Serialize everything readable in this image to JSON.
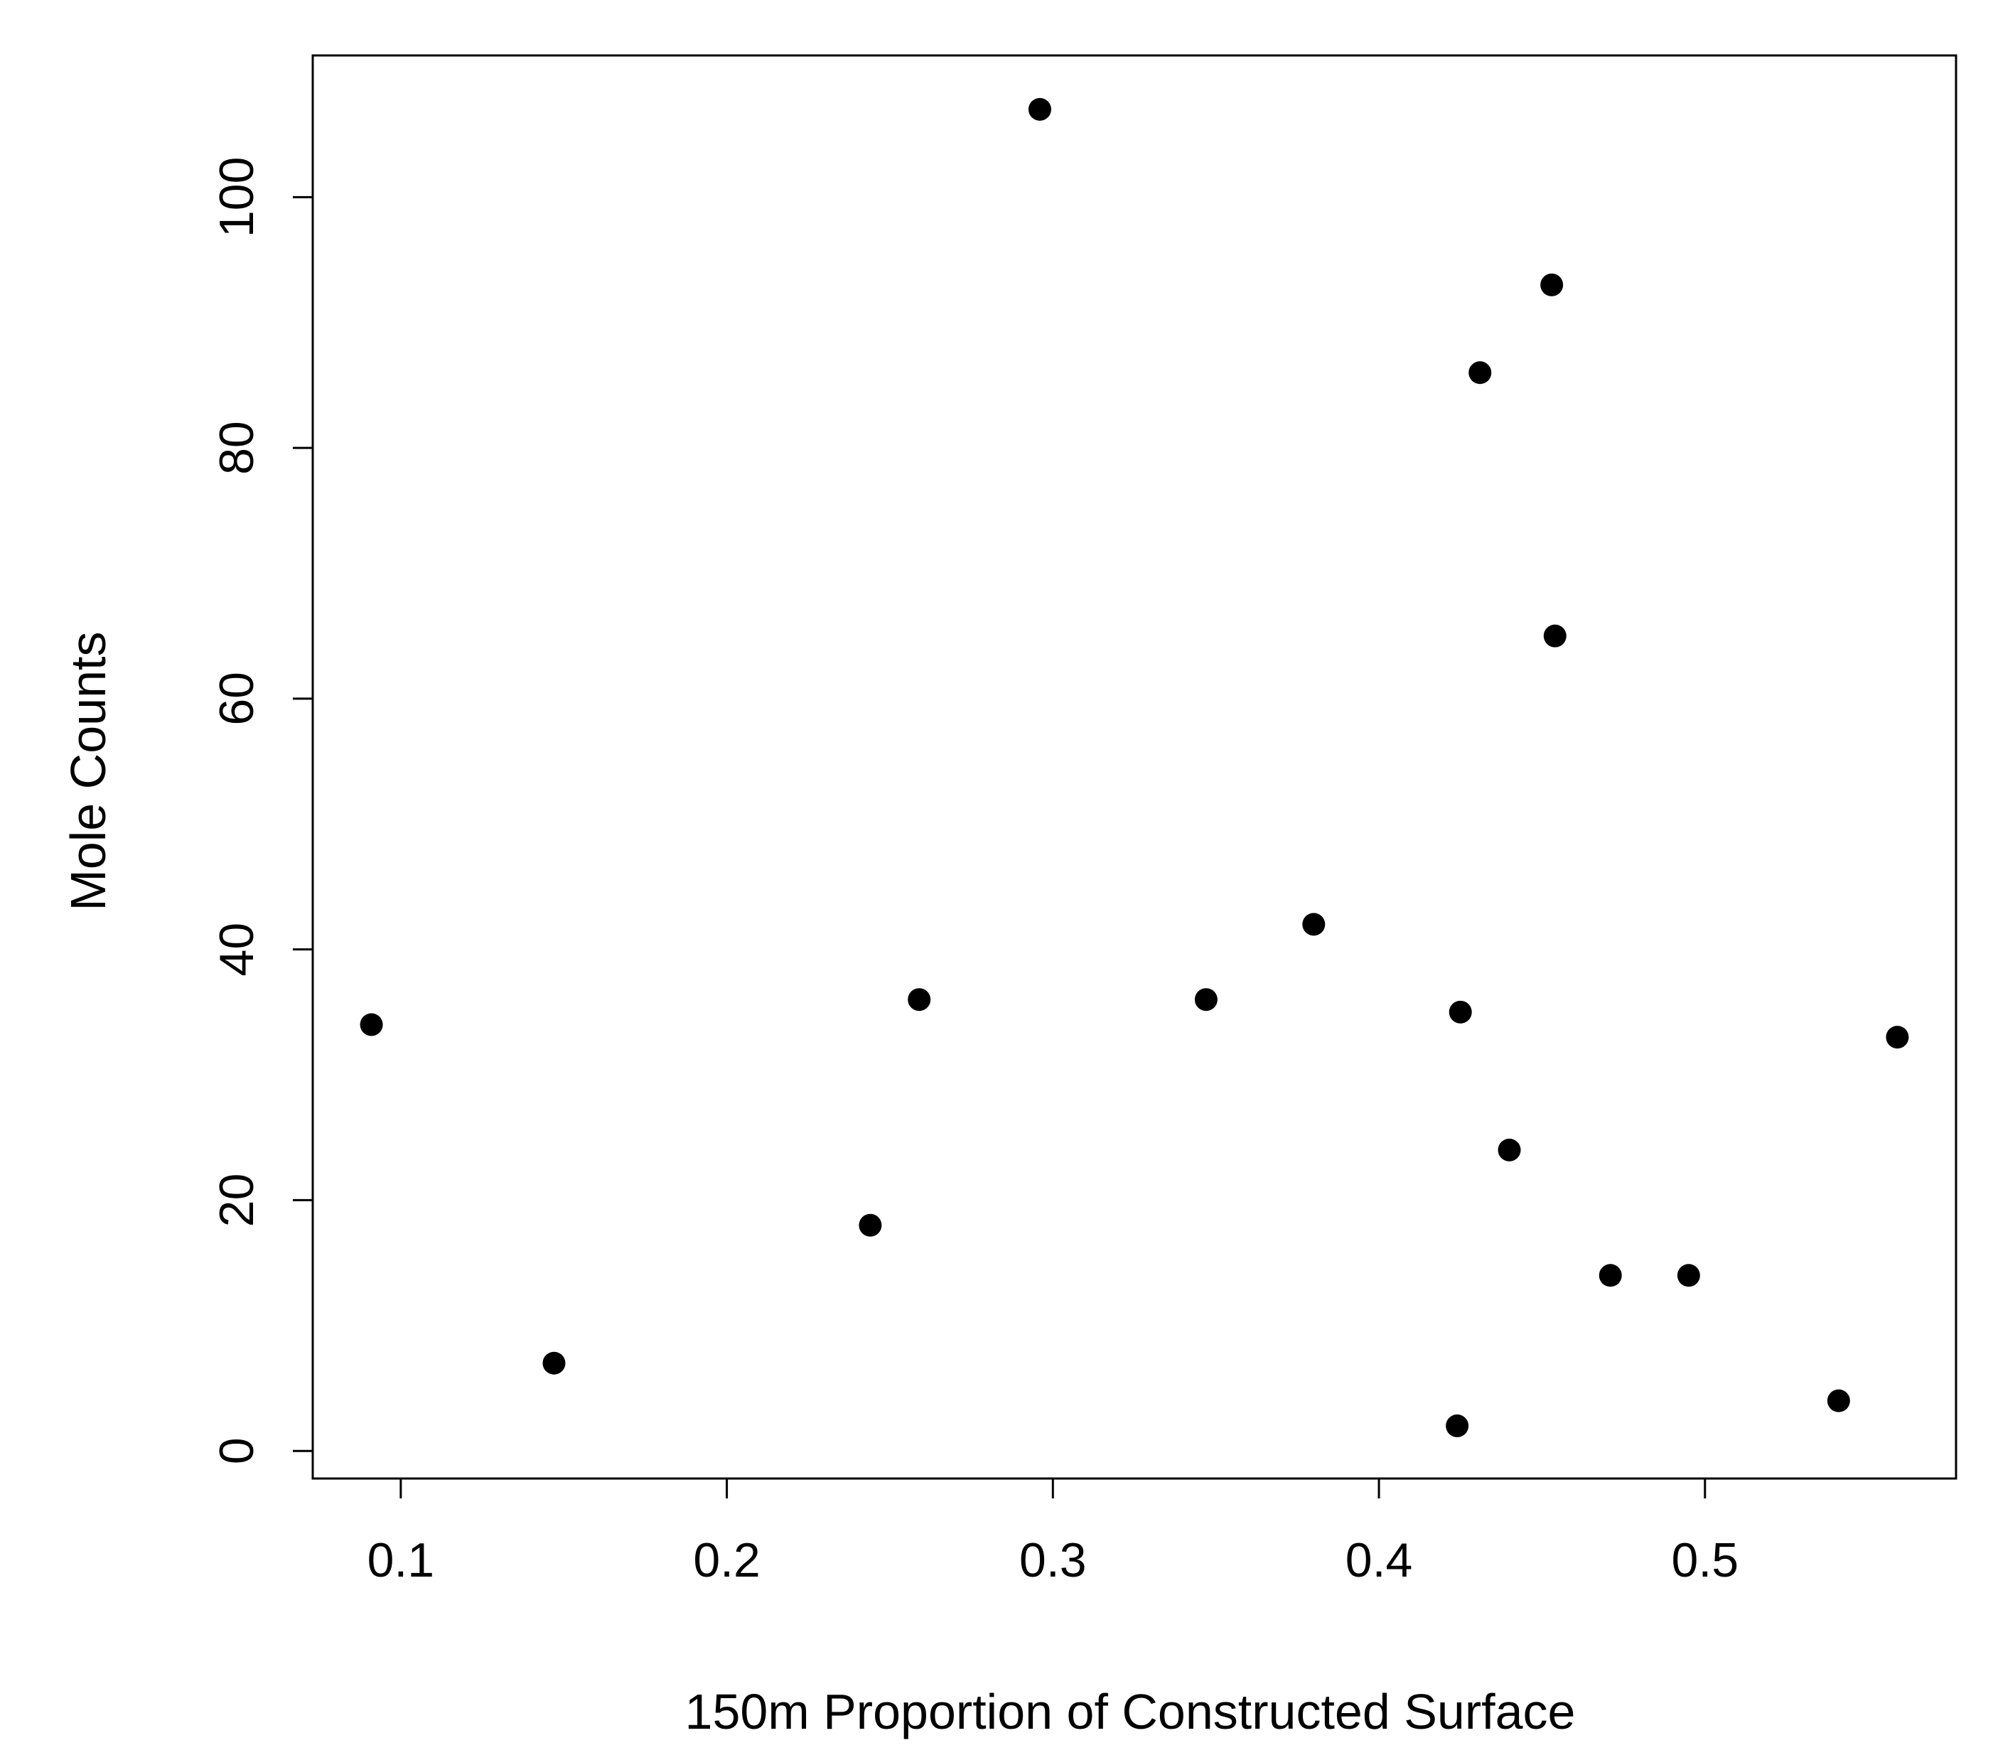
{
  "chart_data": {
    "type": "scatter",
    "title": "",
    "xlabel": "150m Proportion of Constructed Surface",
    "ylabel": "Mole Counts",
    "xlim": [
      0.073,
      0.577
    ],
    "ylim": [
      -2.2,
      111.3
    ],
    "x_ticks": [
      0.1,
      0.2,
      0.3,
      0.4,
      0.5
    ],
    "x_tick_labels": [
      "0.1",
      "0.2",
      "0.3",
      "0.4",
      "0.5"
    ],
    "y_ticks": [
      0,
      20,
      40,
      60,
      80,
      100
    ],
    "y_tick_labels": [
      "0",
      "20",
      "40",
      "60",
      "80",
      "100"
    ],
    "grid": false,
    "legend": "none",
    "marker_color": "#000000",
    "points": [
      {
        "x": 0.091,
        "y": 34
      },
      {
        "x": 0.147,
        "y": 7
      },
      {
        "x": 0.244,
        "y": 18
      },
      {
        "x": 0.259,
        "y": 36
      },
      {
        "x": 0.296,
        "y": 107
      },
      {
        "x": 0.347,
        "y": 36
      },
      {
        "x": 0.38,
        "y": 42
      },
      {
        "x": 0.424,
        "y": 2
      },
      {
        "x": 0.425,
        "y": 35
      },
      {
        "x": 0.431,
        "y": 86
      },
      {
        "x": 0.44,
        "y": 24
      },
      {
        "x": 0.453,
        "y": 93
      },
      {
        "x": 0.454,
        "y": 65
      },
      {
        "x": 0.471,
        "y": 14
      },
      {
        "x": 0.495,
        "y": 14
      },
      {
        "x": 0.541,
        "y": 4
      },
      {
        "x": 0.559,
        "y": 33
      }
    ]
  }
}
